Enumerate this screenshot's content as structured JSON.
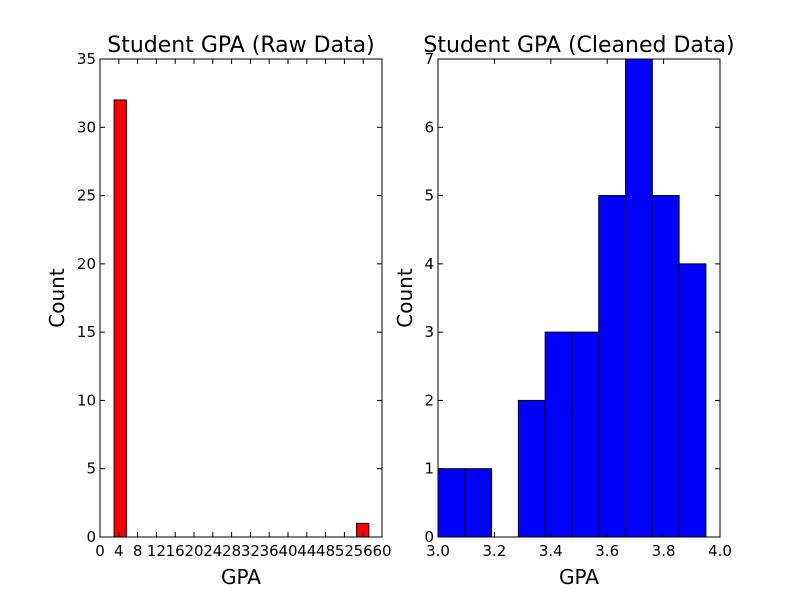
{
  "chart_data": [
    {
      "type": "bar",
      "title": "Student GPA (Raw Data)",
      "xlabel": "GPA",
      "ylabel": "Count",
      "xlim": [
        0,
        60
      ],
      "ylim": [
        0,
        35
      ],
      "xticks": [
        0,
        4,
        8,
        12,
        16,
        20,
        24,
        28,
        32,
        36,
        40,
        44,
        48,
        52,
        56,
        60
      ],
      "xtick_labels": [
        "0",
        "4",
        "8",
        "12",
        "16",
        "20",
        "24",
        "28",
        "32",
        "36",
        "40",
        "44",
        "48",
        "52",
        "56",
        "60"
      ],
      "yticks": [
        0,
        5,
        10,
        15,
        20,
        25,
        30,
        35
      ],
      "ytick_labels": [
        "0",
        "5",
        "10",
        "15",
        "20",
        "25",
        "30",
        "35"
      ],
      "bins": [
        {
          "start": 3.0,
          "end": 5.6,
          "value": 32
        },
        {
          "start": 54.6,
          "end": 57.2,
          "value": 1
        }
      ],
      "grid": false,
      "color": "#ff0000"
    },
    {
      "type": "bar",
      "title": "Student GPA (Cleaned Data)",
      "xlabel": "GPA",
      "ylabel": "Count",
      "xlim": [
        3.0,
        4.0
      ],
      "ylim": [
        0,
        7
      ],
      "xticks": [
        3.0,
        3.2,
        3.4,
        3.6,
        3.8,
        4.0
      ],
      "xtick_labels": [
        "3.0",
        "3.2",
        "3.4",
        "3.6",
        "3.8",
        "4.0"
      ],
      "yticks": [
        0,
        1,
        2,
        3,
        4,
        5,
        6,
        7
      ],
      "ytick_labels": [
        "0",
        "1",
        "2",
        "3",
        "4",
        "5",
        "6",
        "7"
      ],
      "bins": [
        {
          "start": 3.0,
          "end": 3.095,
          "value": 1
        },
        {
          "start": 3.095,
          "end": 3.19,
          "value": 1
        },
        {
          "start": 3.19,
          "end": 3.285,
          "value": 0
        },
        {
          "start": 3.285,
          "end": 3.38,
          "value": 2
        },
        {
          "start": 3.38,
          "end": 3.475,
          "value": 3
        },
        {
          "start": 3.475,
          "end": 3.57,
          "value": 3
        },
        {
          "start": 3.57,
          "end": 3.665,
          "value": 5
        },
        {
          "start": 3.665,
          "end": 3.76,
          "value": 7
        },
        {
          "start": 3.76,
          "end": 3.855,
          "value": 5
        },
        {
          "start": 3.855,
          "end": 3.95,
          "value": 4
        }
      ],
      "grid": false,
      "color": "#0000ff"
    }
  ]
}
